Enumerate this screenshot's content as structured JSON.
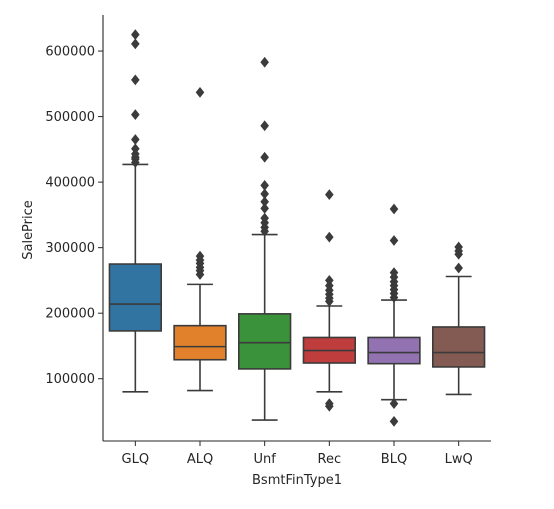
{
  "chart_data": {
    "type": "box",
    "xlabel": "BsmtFinType1",
    "ylabel": "SalePrice",
    "ylim": [
      5000,
      655000
    ],
    "yticks": [
      100000,
      200000,
      300000,
      400000,
      500000,
      600000
    ],
    "ytick_labels": [
      "100000",
      "200000",
      "300000",
      "400000",
      "500000",
      "600000"
    ],
    "grid": false,
    "categories": [
      "GLQ",
      "ALQ",
      "Unf",
      "Rec",
      "BLQ",
      "LwQ"
    ],
    "colors": [
      "#3274a1",
      "#e1812c",
      "#3a923a",
      "#c03d3e",
      "#9372b2",
      "#845b53"
    ],
    "boxes": [
      {
        "whisker_low": 80000,
        "q1": 173000,
        "median": 214000,
        "q3": 275000,
        "whisker_high": 427000,
        "fliers": [
          430000,
          435000,
          438000,
          443000,
          451000,
          465000,
          503000,
          556000,
          611000,
          625000
        ]
      },
      {
        "whisker_low": 82000,
        "q1": 129000,
        "median": 149000,
        "q3": 181000,
        "whisker_high": 244000,
        "fliers": [
          259000,
          265000,
          270000,
          276000,
          281000,
          287000,
          537000
        ]
      },
      {
        "whisker_low": 37000,
        "q1": 115000,
        "median": 155000,
        "q3": 199000,
        "whisker_high": 320000,
        "fliers": [
          325000,
          331000,
          338000,
          345000,
          360000,
          370000,
          382000,
          395000,
          438000,
          486000,
          583000
        ]
      },
      {
        "whisker_low": 80000,
        "q1": 124000,
        "median": 143000,
        "q3": 163000,
        "whisker_high": 211000,
        "fliers": [
          58000,
          62000,
          218000,
          223000,
          229000,
          235000,
          242000,
          250000,
          316000,
          381000
        ]
      },
      {
        "whisker_low": 68000,
        "q1": 123000,
        "median": 140000,
        "q3": 163000,
        "whisker_high": 220000,
        "fliers": [
          35000,
          62000,
          224000,
          230000,
          236000,
          242000,
          248000,
          255000,
          262000,
          311000,
          359000
        ]
      },
      {
        "whisker_low": 76000,
        "q1": 118000,
        "median": 140000,
        "q3": 179000,
        "whisker_high": 256000,
        "fliers": [
          269000,
          290000,
          295000,
          301000
        ]
      }
    ]
  }
}
